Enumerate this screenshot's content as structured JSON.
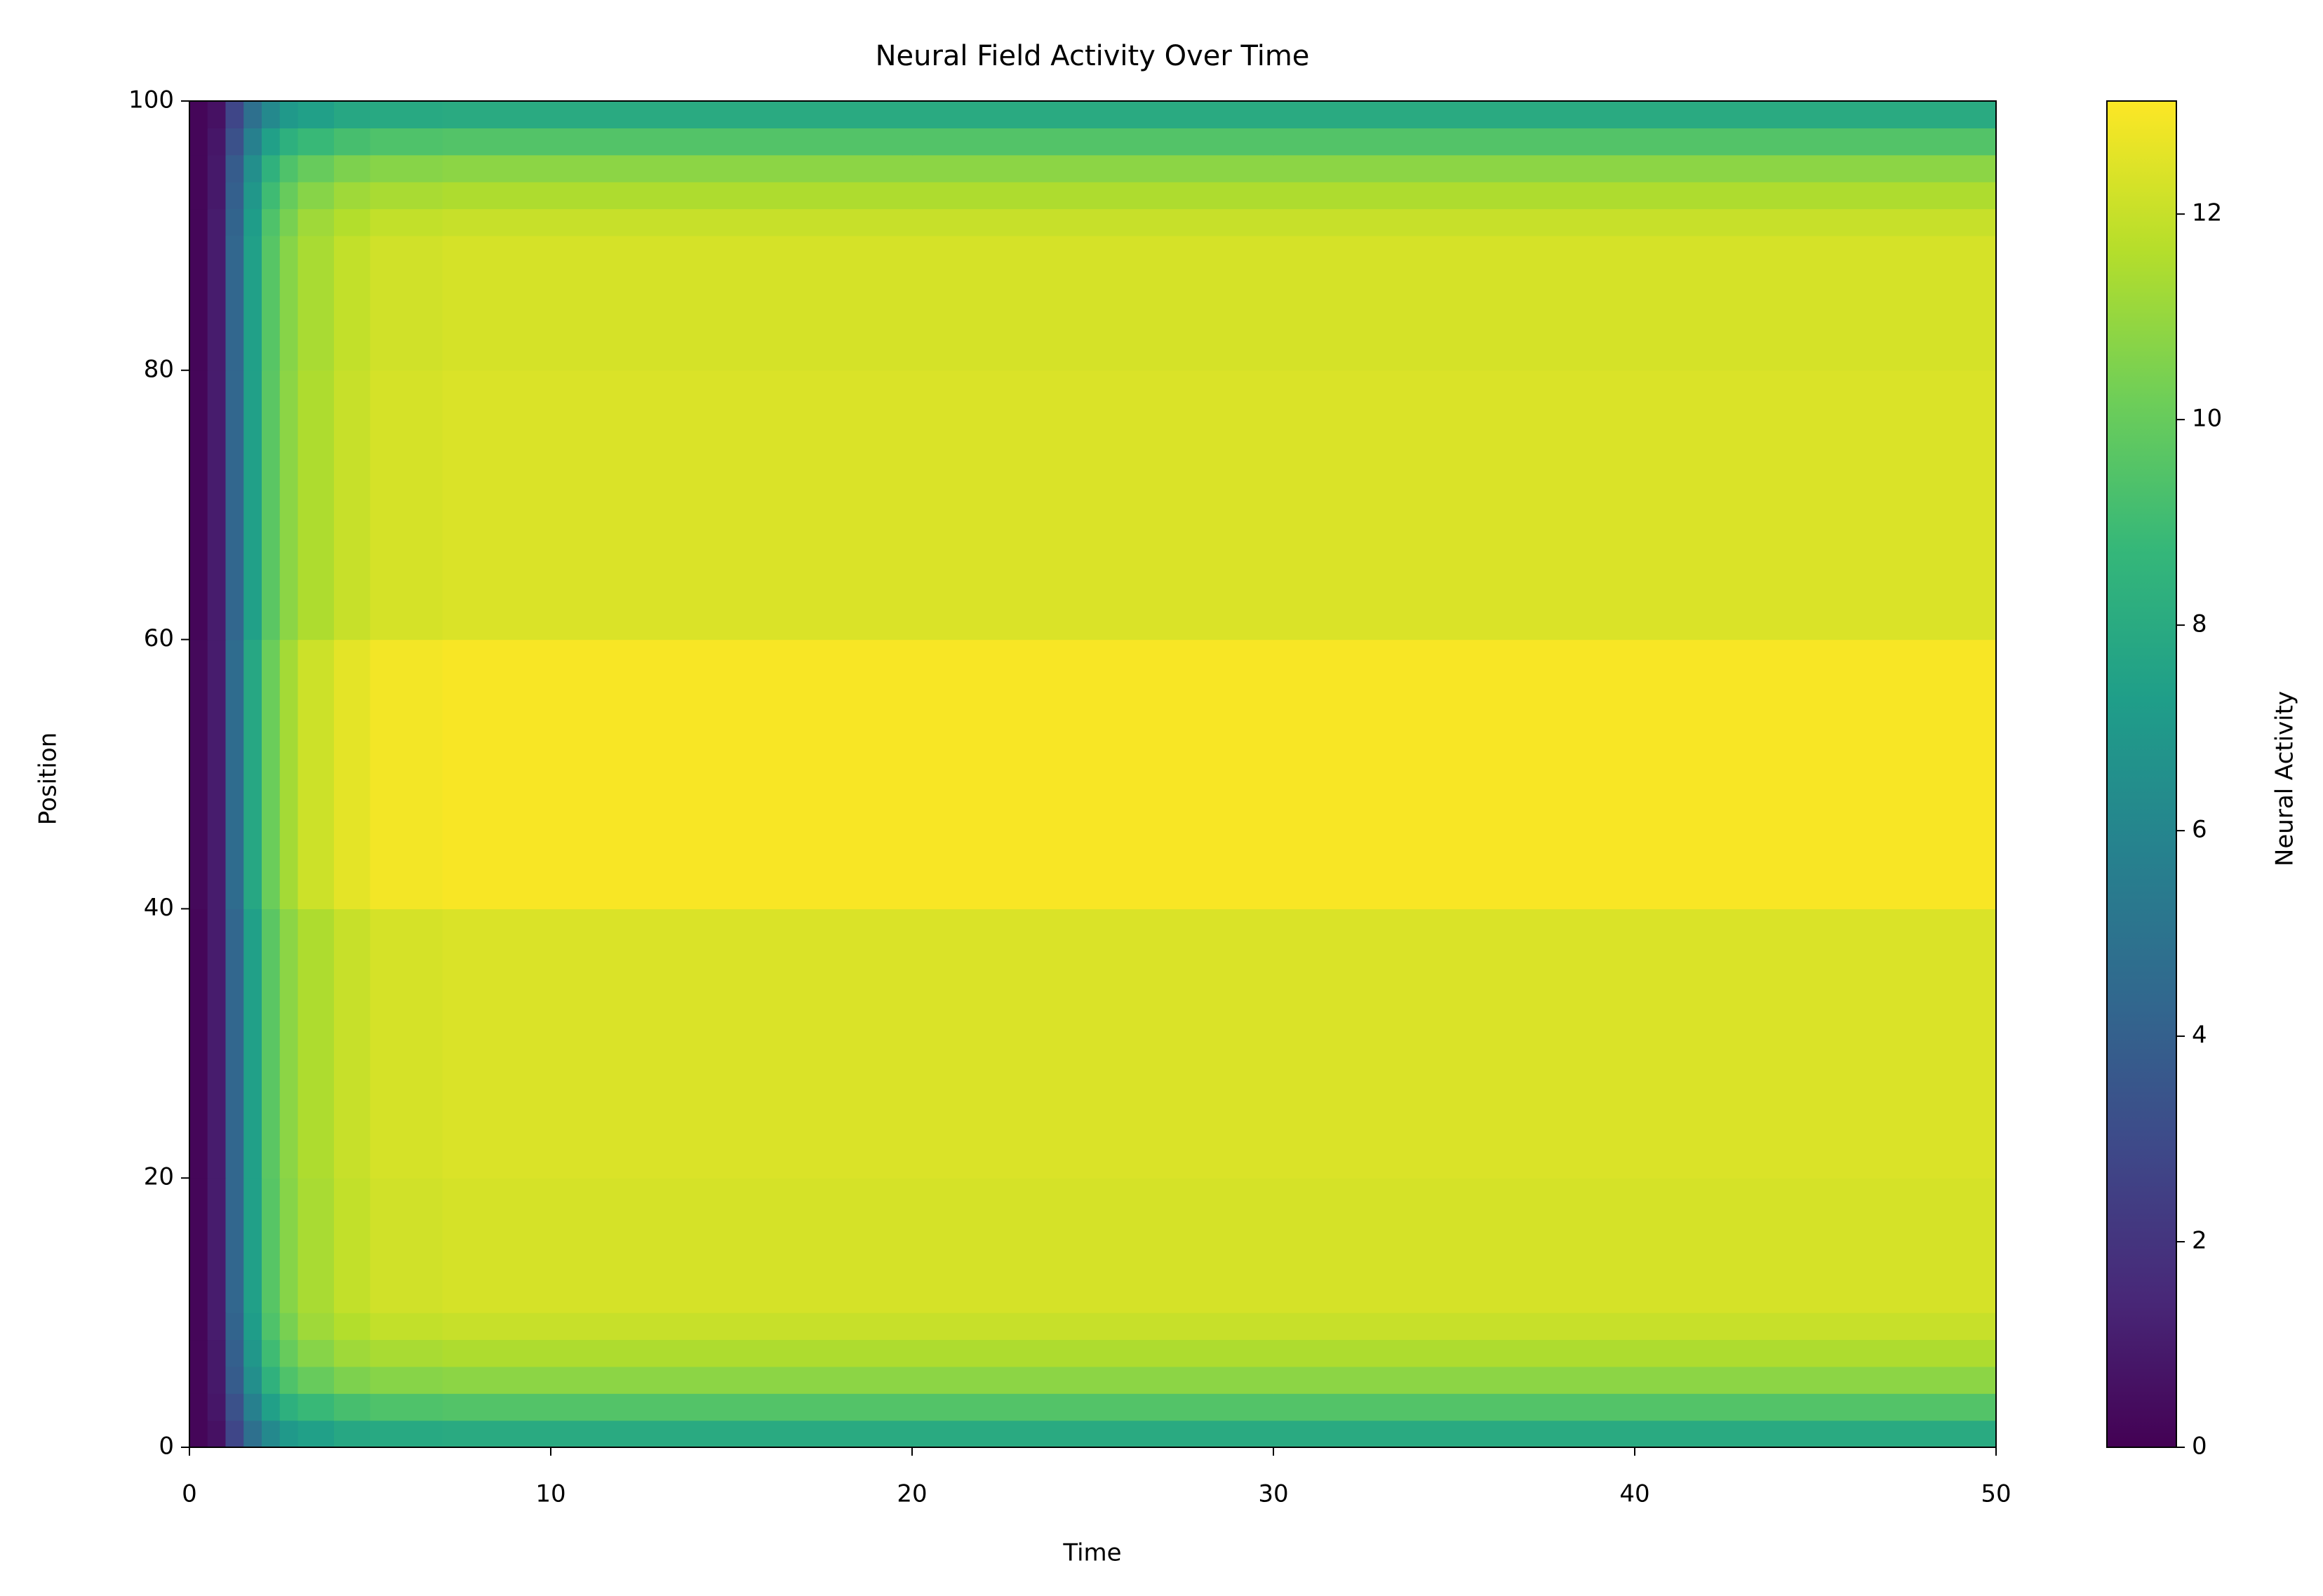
{
  "chart_data": {
    "type": "heatmap",
    "title": "Neural Field Activity Over Time",
    "x_label": "Time",
    "y_label": "Position",
    "colorbar_label": "Neural Activity",
    "colormap": "viridis",
    "xbins": [
      0,
      0.5,
      1,
      1.5,
      2,
      2.5,
      3,
      4,
      5,
      7,
      10,
      20,
      30,
      40,
      50
    ],
    "ybins": [
      0,
      2,
      4,
      6,
      8,
      10,
      20,
      40,
      60,
      80,
      90,
      92,
      94,
      96,
      98,
      100
    ],
    "values": [
      [
        0.2,
        0.6,
        2.8,
        4.8,
        6.2,
        7.0,
        7.4,
        7.8,
        7.9,
        8,
        8,
        8,
        8,
        8
      ],
      [
        0.2,
        0.8,
        3.3,
        5.7,
        7.4,
        8.3,
        8.8,
        9.2,
        9.4,
        9.5,
        9.5,
        9.5,
        9.5,
        9.5
      ],
      [
        0.2,
        0.9,
        3.8,
        6.5,
        8.4,
        9.4,
        10.0,
        10.5,
        10.7,
        10.8,
        10.8,
        10.8,
        10.8,
        10.8
      ],
      [
        0.2,
        0.9,
        4.0,
        6.9,
        9.0,
        10.0,
        10.7,
        11.2,
        11.4,
        11.5,
        11.5,
        11.5,
        11.5,
        11.5
      ],
      [
        0.2,
        1.0,
        4.2,
        7.2,
        9.4,
        10.4,
        11.2,
        11.6,
        11.9,
        12,
        12,
        12,
        12,
        12
      ],
      [
        0.2,
        1.0,
        4.3,
        7.4,
        9.6,
        10.7,
        11.4,
        11.9,
        12.2,
        12.3,
        12.3,
        12.3,
        12.3,
        12.3
      ],
      [
        0.2,
        1.0,
        4.3,
        7.4,
        9.7,
        10.8,
        11.5,
        12.0,
        12.3,
        12.4,
        12.4,
        12.4,
        12.4,
        12.4
      ],
      [
        0.3,
        1.0,
        4.6,
        7.8,
        10.1,
        11.3,
        12.1,
        12.6,
        12.9,
        13,
        13,
        13,
        13,
        13
      ],
      [
        0.2,
        1.0,
        4.3,
        7.4,
        9.7,
        10.8,
        11.5,
        12.0,
        12.3,
        12.4,
        12.4,
        12.4,
        12.4,
        12.4
      ],
      [
        0.2,
        1.0,
        4.3,
        7.4,
        9.6,
        10.7,
        11.4,
        11.9,
        12.2,
        12.3,
        12.3,
        12.3,
        12.3,
        12.3
      ],
      [
        0.2,
        1.0,
        4.2,
        7.2,
        9.4,
        10.4,
        11.2,
        11.6,
        11.9,
        12,
        12,
        12,
        12,
        12
      ],
      [
        0.2,
        0.9,
        4.0,
        6.9,
        9.0,
        10.0,
        10.7,
        11.2,
        11.4,
        11.5,
        11.5,
        11.5,
        11.5,
        11.5
      ],
      [
        0.2,
        0.9,
        3.8,
        6.5,
        8.4,
        9.4,
        10.0,
        10.5,
        10.7,
        10.8,
        10.8,
        10.8,
        10.8,
        10.8
      ],
      [
        0.2,
        0.8,
        3.3,
        5.7,
        7.4,
        8.3,
        8.8,
        9.2,
        9.4,
        9.5,
        9.5,
        9.5,
        9.5,
        9.5
      ],
      [
        0.2,
        0.6,
        2.8,
        4.8,
        6.2,
        7.0,
        7.4,
        7.8,
        7.9,
        8,
        8,
        8,
        8,
        8
      ]
    ],
    "xlim": [
      0,
      50
    ],
    "xticks": [
      0,
      10,
      20,
      30,
      40,
      50
    ],
    "ylim": [
      0,
      100
    ],
    "yticks": [
      0,
      20,
      40,
      60,
      80,
      100
    ],
    "clim": [
      0,
      13.1
    ],
    "cticks": [
      0,
      2,
      4,
      6,
      8,
      10,
      12
    ]
  }
}
